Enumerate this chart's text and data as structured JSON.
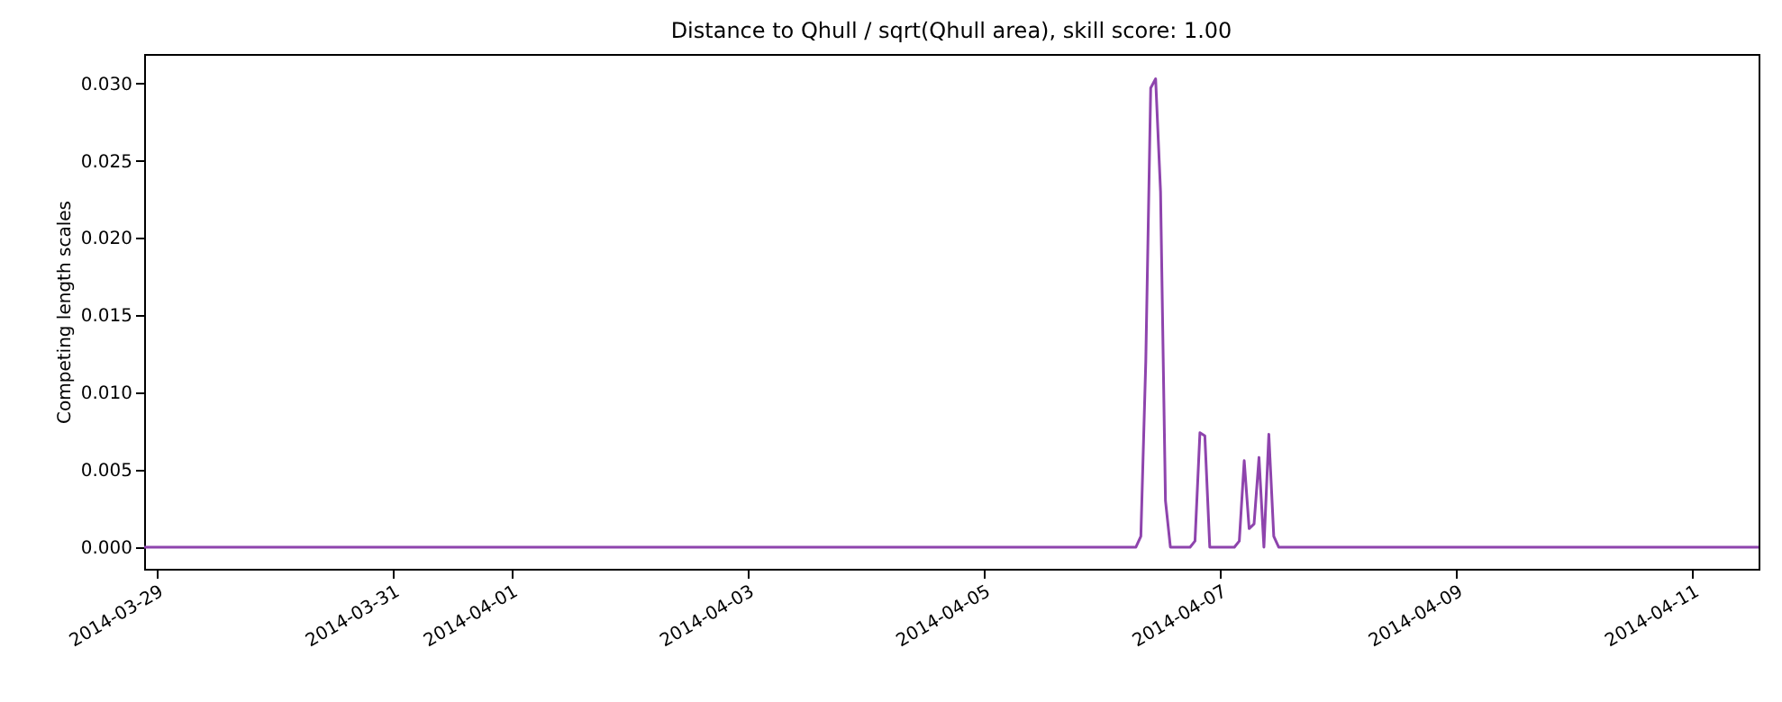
{
  "chart_data": {
    "type": "line",
    "title": "Distance to Qhull / sqrt(Qhull area), skill score: 1.00",
    "ylabel": "Competing length scales",
    "x": [
      "2014-03-28T21:30",
      "2014-04-06T07:00",
      "2014-04-06T08:00",
      "2014-04-06T09:00",
      "2014-04-06T10:00",
      "2014-04-06T11:00",
      "2014-04-06T12:00",
      "2014-04-06T13:00",
      "2014-04-06T14:00",
      "2014-04-06T18:00",
      "2014-04-06T19:00",
      "2014-04-06T20:00",
      "2014-04-06T21:00",
      "2014-04-06T22:00",
      "2014-04-07T03:00",
      "2014-04-07T04:00",
      "2014-04-07T05:00",
      "2014-04-07T06:00",
      "2014-04-07T07:00",
      "2014-04-07T08:00",
      "2014-04-07T09:00",
      "2014-04-07T10:00",
      "2014-04-07T11:00",
      "2014-04-07T12:00",
      "2014-04-11T13:30"
    ],
    "series": [
      {
        "color": "#8e44ad",
        "values": [
          0,
          0,
          0.0007,
          0.012,
          0.0297,
          0.0303,
          0.023,
          0.003,
          0,
          0,
          0.0004,
          0.0074,
          0.0072,
          0,
          0,
          0.0004,
          0.0056,
          0.0012,
          0.0015,
          0.0058,
          0,
          0.0073,
          0.0007,
          0,
          0
        ]
      }
    ],
    "xlim": [
      "2014-03-28T21:30",
      "2014-04-11T13:30"
    ],
    "xticks": [
      "2014-03-29",
      "2014-03-31",
      "2014-04-01",
      "2014-04-03",
      "2014-04-05",
      "2014-04-07",
      "2014-04-09",
      "2014-04-11"
    ],
    "ylim": [
      -0.0014,
      0.0319
    ],
    "yticks": [
      {
        "value": 0,
        "label": "0.000"
      },
      {
        "value": 0.005,
        "label": "0.005"
      },
      {
        "value": 0.01,
        "label": "0.010"
      },
      {
        "value": 0.015,
        "label": "0.015"
      },
      {
        "value": 0.02,
        "label": "0.020"
      },
      {
        "value": 0.025,
        "label": "0.025"
      },
      {
        "value": 0.03,
        "label": "0.030"
      }
    ],
    "grid": false,
    "marker": "none",
    "line_style": "solid"
  }
}
